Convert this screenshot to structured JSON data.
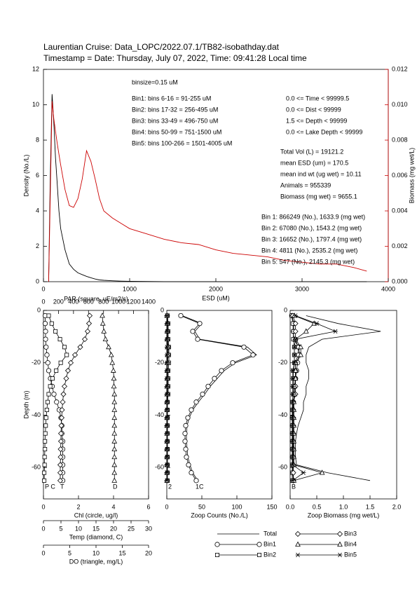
{
  "chart_data": [
    {
      "type": "line",
      "title": "Laurentian Cruise: Data_LOPC/2022.07.1/TB82-isobathday.dat",
      "subtitle": "Timestamp = Date: Thursday, July 07, 2022, Time: 09:41:28 Local time",
      "xlabel": "ESD (uM)",
      "ylabel": "Density (No./L)",
      "y2label": "Biomass (mg wet/L)",
      "x": [
        60,
        80,
        100,
        120,
        140,
        160,
        180,
        200,
        250,
        300,
        350,
        400,
        450,
        500,
        550,
        600,
        650,
        700,
        800,
        900,
        1000,
        1200,
        1400,
        1600,
        1800,
        2000,
        2200,
        2400,
        2600,
        2800,
        3000,
        3200,
        3400,
        3600,
        3750
      ],
      "xlim": [
        0,
        4000
      ],
      "xticks": [
        0,
        1000,
        2000,
        3000,
        4000
      ],
      "ylim": [
        0,
        12
      ],
      "yticks": [
        0,
        2,
        4,
        6,
        8,
        10,
        12
      ],
      "y2lim": [
        0,
        0.012
      ],
      "y2ticks": [
        {
          "value": 0,
          "label": "0.000"
        },
        {
          "value": 0.002,
          "label": "0.002"
        },
        {
          "value": 0.004,
          "label": "0.004"
        },
        {
          "value": 0.006,
          "label": "0.006"
        },
        {
          "value": 0.008,
          "label": "0.008"
        },
        {
          "value": 0.01,
          "label": "0.010"
        },
        {
          "value": 0.012,
          "label": "0.012"
        }
      ],
      "series": [
        {
          "color": "#000000",
          "values": [
            0,
            6,
            10.6,
            9,
            7,
            5.5,
            4,
            3,
            1.8,
            1,
            0.7,
            0.5,
            0.4,
            0.3,
            0.22,
            0.15,
            0.1,
            0.08,
            0.05,
            0.03,
            0.02,
            0.01,
            0,
            0,
            0,
            0,
            0,
            0,
            0,
            0,
            0,
            0,
            0,
            0,
            0
          ]
        },
        {
          "color": "#cc0000",
          "axis": "y2",
          "values": [
            0,
            0.005,
            0.0102,
            0.0092,
            0.0085,
            0.0078,
            0.0072,
            0.0066,
            0.0052,
            0.0043,
            0.0042,
            0.0047,
            0.0058,
            0.0074,
            0.0068,
            0.0058,
            0.0047,
            0.004,
            0.0036,
            0.0033,
            0.003,
            0.0027,
            0.0024,
            0.0022,
            0.0021,
            0.0018,
            0.0016,
            0.0015,
            0.0014,
            0.0012,
            0.0011,
            0.001,
            0.001,
            0.0008,
            0.0006
          ]
        }
      ],
      "annotations": [
        [
          "binsize=0.15 uM"
        ],
        [
          "Bin1: bins 6-16 = 91-255 uM",
          "Bin2: bins 17-32 = 256-495 uM",
          "Bin3: bins 33-49 = 496-750 uM",
          "Bin4: bins 50-99 = 751-1500 uM",
          "Bin5: bins 100-266 = 1501-4005 uM"
        ],
        [
          "0.0 <= Time < 99999.5",
          "0.0 <= Dist < 99999",
          "1.5 <= Depth < 99999",
          "0.0 <= Lake Depth < 99999"
        ],
        [
          "Total Vol (L) = 19121.2",
          "mean ESD (um) = 170.5",
          "mean ind wt (ug wet) = 10.11",
          "Animals = 955339",
          "Biomass (mg wet) = 9655.1"
        ],
        [
          "Bin 1: 866249 (No.), 1633.9 (mg wet)",
          "Bin 2: 67080 (No.), 1543.2 (mg wet)",
          "Bin 3: 16652 (No.), 1797.4 (mg wet)",
          "Bin 4: 4811 (No.), 2535.2 (mg wet)",
          "Bin 5: 547 (No.), 2145.3 (mg wet)"
        ]
      ]
    },
    {
      "type": "profile",
      "ylabel": "Depth (m)",
      "y": [
        -2,
        -5,
        -8,
        -11,
        -14,
        -17,
        -20,
        -23,
        -26,
        -29,
        -32,
        -35,
        -38,
        -41,
        -44,
        -47,
        -50,
        -53,
        -56,
        -59,
        -62,
        -65
      ],
      "ylim": [
        -72,
        0
      ],
      "yticks": [
        0,
        -20,
        -40,
        -60
      ],
      "end_labels": [
        "P C",
        "T",
        "D"
      ],
      "axes": [
        {
          "xlabel": "Chl (circle, ug/l)",
          "xlim": [
            0,
            6
          ],
          "xticks": [
            0,
            2,
            4,
            6
          ],
          "series": {
            "marker": "circle",
            "values": [
              0.1,
              0.1,
              0.12,
              0.12,
              0.15,
              0.2,
              0.25,
              0.3,
              0.4,
              0.5,
              0.6,
              0.75,
              0.9,
              1,
              1.05,
              1.05,
              1.1,
              1.1,
              1.1,
              1.1,
              1.1,
              1.1
            ]
          }
        },
        {
          "xlabel": "Temp (diamond, C)",
          "xlim": [
            0,
            30
          ],
          "xticks": [
            0,
            5,
            10,
            15,
            20,
            25,
            30
          ],
          "series": {
            "marker": "diamond",
            "values": [
              13.2,
              13,
              12.6,
              11.8,
              10.5,
              9,
              7.8,
              7,
              6.5,
              6,
              5.7,
              5.5,
              5.3,
              5.2,
              5.1,
              5,
              5,
              4.9,
              4.9,
              4.8,
              4.8,
              4.8
            ]
          }
        },
        {
          "xlabel": "DO (triangle, mg/L)",
          "xlim": [
            0,
            20
          ],
          "xticks": [
            0,
            5,
            10,
            15,
            20
          ],
          "series": {
            "marker": "triangle",
            "values": [
              11.2,
              11.3,
              11.5,
              11.8,
              12.4,
              12.9,
              13.1,
              13.3,
              13.4,
              13.4,
              13.5,
              13.5,
              13.5,
              13.5,
              13.5,
              13.5,
              13.5,
              13.5,
              13.5,
              13.5,
              13.5,
              13.5
            ]
          }
        },
        {
          "xlabel": "PAR (square, uE/m2/s)",
          "xlim": [
            0,
            1400
          ],
          "xticks": [
            0,
            200,
            400,
            600,
            800,
            1000,
            1200,
            1400
          ],
          "series": {
            "marker": "square",
            "values": [
              70,
              110,
              160,
              220,
              280,
              310,
              230,
              170,
              120,
              90,
              70,
              55,
              45,
              35,
              30,
              25,
              20,
              20,
              15,
              15,
              10,
              10
            ]
          }
        }
      ]
    },
    {
      "type": "profile",
      "xlabel": "Zoop Counts (No./L)",
      "xlim": [
        0,
        150
      ],
      "xticks": [
        0,
        50,
        100,
        150
      ],
      "y": [
        -2,
        -5,
        -8,
        -11,
        -14,
        -17,
        -20,
        -23,
        -26,
        -29,
        -32,
        -35,
        -38,
        -41,
        -44,
        -47,
        -50,
        -53,
        -56,
        -59,
        -62,
        -65
      ],
      "ylim": [
        -72,
        0
      ],
      "yticks": [
        0,
        -20,
        -40,
        -60
      ],
      "end_labels": [
        "2",
        "1C"
      ],
      "series": [
        {
          "name": "Total",
          "values": [
            22,
            50,
            40,
            47,
            115,
            128,
            98,
            82,
            72,
            62,
            54,
            45,
            37,
            32,
            29,
            28,
            28,
            29,
            30,
            33,
            37,
            44
          ]
        },
        {
          "name": "Bin1",
          "marker": "circle",
          "values": [
            20,
            47,
            37,
            44,
            110,
            123,
            94,
            78,
            68,
            59,
            51,
            42,
            35,
            30,
            27,
            26,
            26,
            27,
            28,
            31,
            35,
            42
          ]
        },
        {
          "name": "Bin2",
          "marker": "square",
          "values": [
            1,
            2,
            2,
            2,
            3,
            3,
            3,
            2,
            2,
            2,
            2,
            1,
            1,
            1,
            1,
            1,
            1,
            1,
            1,
            1,
            1,
            1
          ]
        },
        {
          "name": "Bin3",
          "marker": "diamond",
          "values": [
            0.5,
            1,
            1,
            1,
            2,
            2,
            1,
            1,
            1,
            1,
            1,
            0.5,
            0.5,
            0.5,
            0.5,
            0.5,
            0.5,
            0.5,
            0.5,
            0.5,
            0.5,
            0.5
          ]
        },
        {
          "name": "Bin4",
          "marker": "triangle",
          "values": [
            0.2,
            0.5,
            0.5,
            0.5,
            1,
            1,
            0.5,
            0.5,
            0.5,
            0.3,
            0.3,
            0.2,
            0.2,
            0.2,
            0.2,
            0.2,
            0.2,
            0.2,
            0.2,
            0.2,
            0.2,
            0.2
          ]
        },
        {
          "name": "Bin5",
          "marker": "star",
          "values": [
            0.1,
            0.3,
            0.5,
            0.2,
            0.3,
            0.3,
            0.2,
            0.1,
            0.1,
            0.1,
            0.1,
            0.1,
            0.1,
            0.1,
            0.1,
            0.1,
            0.1,
            0.1,
            0.1,
            0.1,
            0.1,
            0.1
          ]
        }
      ]
    },
    {
      "type": "profile",
      "xlabel": "Zoop Biomass (mg wet/L)",
      "xlim": [
        0,
        2
      ],
      "xticks": [
        {
          "value": 0,
          "label": "0.0"
        },
        0.5,
        {
          "value": 1,
          "label": "1.0"
        },
        1.5,
        {
          "value": 2,
          "label": "2.0"
        }
      ],
      "y": [
        -2,
        -5,
        -8,
        -11,
        -14,
        -17,
        -20,
        -23,
        -26,
        -29,
        -32,
        -35,
        -38,
        -41,
        -44,
        -47,
        -50,
        -53,
        -56,
        -59,
        -62,
        -65
      ],
      "ylim": [
        -72,
        0
      ],
      "yticks": [
        0,
        -20,
        -40,
        -60
      ],
      "end_labels": [
        "B"
      ],
      "series": [
        {
          "values": [
            0.3,
            0.9,
            1.7,
            0.6,
            0.35,
            0.3,
            0.3,
            0.35,
            0.35,
            0.3,
            0.3,
            0.25,
            0.25,
            0.2,
            0.15,
            0.12,
            0.1,
            0.1,
            0.1,
            0.12,
            0.7,
            1.5
          ]
        },
        {
          "marker": "circle",
          "values": [
            0.03,
            0.07,
            0.06,
            0.07,
            0.16,
            0.18,
            0.14,
            0.12,
            0.1,
            0.09,
            0.08,
            0.06,
            0.05,
            0.04,
            0.04,
            0.04,
            0.04,
            0.04,
            0.04,
            0.05,
            0.05,
            0.06
          ]
        },
        {
          "marker": "square",
          "values": [
            0.03,
            0.05,
            0.06,
            0.06,
            0.08,
            0.08,
            0.08,
            0.06,
            0.06,
            0.06,
            0.06,
            0.04,
            0.04,
            0.04,
            0.04,
            0.04,
            0.04,
            0.04,
            0.04,
            0.04,
            0.04,
            0.04
          ]
        },
        {
          "marker": "diamond",
          "values": [
            0.05,
            0.1,
            0.1,
            0.1,
            0.15,
            0.15,
            0.1,
            0.1,
            0.1,
            0.1,
            0.1,
            0.06,
            0.06,
            0.06,
            0.06,
            0.06,
            0.06,
            0.06,
            0.06,
            0.06,
            0.06,
            0.06
          ]
        },
        {
          "marker": "triangle",
          "values": [
            0.08,
            0.45,
            0.3,
            0.1,
            0.2,
            0.2,
            0.1,
            0.1,
            0.1,
            0.08,
            0.08,
            0.07,
            0.07,
            0.07,
            0.07,
            0.07,
            0.07,
            0.07,
            0.07,
            0.07,
            0.6,
            0.07
          ]
        },
        {
          "marker": "star",
          "values": [
            0.1,
            0.5,
            0.85,
            0.1,
            0.08,
            0.08,
            0.08,
            0.05,
            0.05,
            0.05,
            0.05,
            0.05,
            0.05,
            0.05,
            0.05,
            0.05,
            0.05,
            0.05,
            0.05,
            0.05,
            0.25,
            0.05
          ]
        }
      ]
    }
  ]
}
